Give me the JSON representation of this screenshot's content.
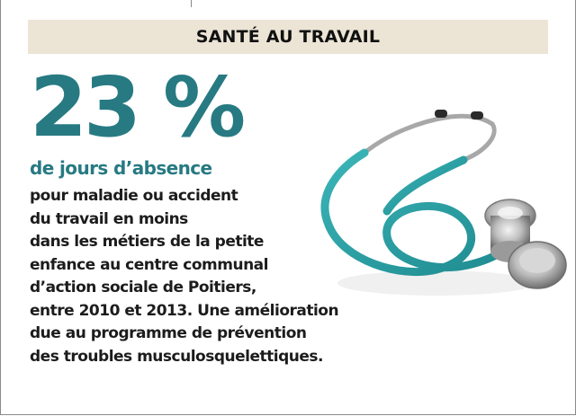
{
  "header": {
    "title": "SANTÉ AU TRAVAIL"
  },
  "stat": {
    "value": "23 %",
    "label": "de jours d’absence"
  },
  "body": {
    "lines": [
      "pour maladie ou accident",
      "du travail en moins",
      "dans les métiers de la petite",
      "enfance au centre communal",
      "d’action sociale de Poitiers,",
      "entre 2010 et 2013. Une amélioration",
      "due au programme de prévention",
      "des troubles musculosquelettiques."
    ]
  },
  "image": {
    "icon": "stethoscope-icon"
  },
  "colors": {
    "accent": "#277a82",
    "banner": "#ece5d6",
    "text": "#1c1c1c"
  }
}
